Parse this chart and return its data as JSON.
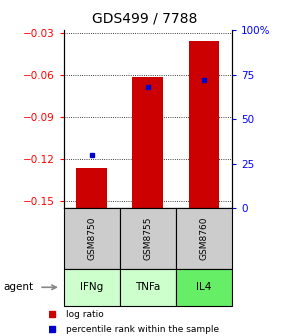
{
  "title": "GDS499 / 7788",
  "samples": [
    "GSM8750",
    "GSM8755",
    "GSM8760"
  ],
  "agents": [
    "IFNg",
    "TNFa",
    "IL4"
  ],
  "log_ratios": [
    -0.126,
    -0.061,
    -0.036
  ],
  "percentile_ranks": [
    30,
    68,
    72
  ],
  "ylim_left": [
    -0.155,
    -0.028
  ],
  "ylim_right": [
    0,
    100
  ],
  "yticks_left": [
    -0.15,
    -0.12,
    -0.09,
    -0.06,
    -0.03
  ],
  "yticks_right": [
    0,
    25,
    50,
    75,
    100
  ],
  "bar_color": "#cc0000",
  "dot_color": "#0000cc",
  "agent_colors": [
    "#ccffcc",
    "#ccffcc",
    "#66ee66"
  ],
  "sample_bg": "#cccccc",
  "title_fontsize": 10,
  "axis_fontsize": 7.5,
  "legend_fontsize": 6.5,
  "bar_width": 0.55
}
